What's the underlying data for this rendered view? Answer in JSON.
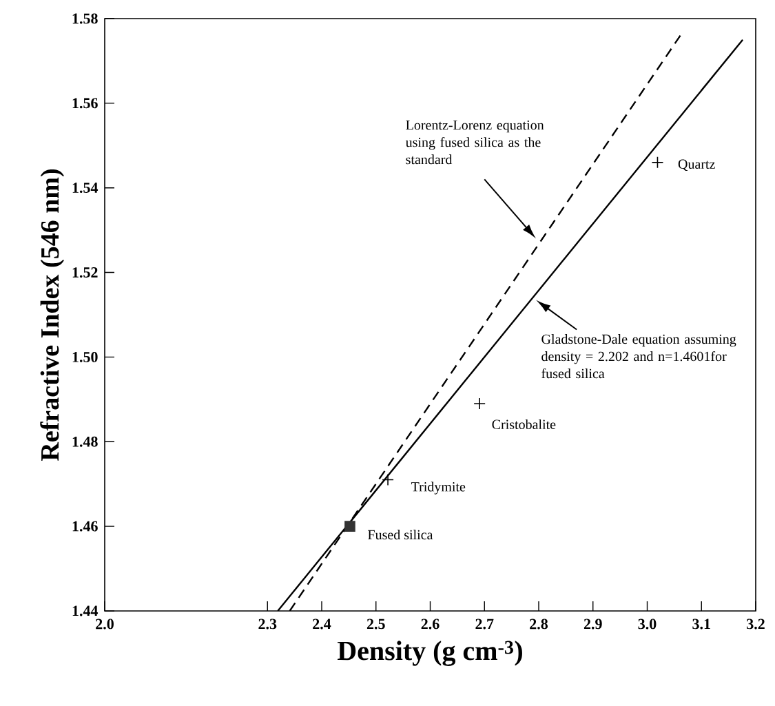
{
  "chart_data": {
    "type": "line",
    "xlabel": "Density (g cm$^{-3}$)",
    "ylabel": "Refractive Index (546 nm)",
    "xlim": [
      2.0,
      3.2
    ],
    "ylim": [
      1.44,
      1.58
    ],
    "xticks": [
      {
        "value": 2,
        "label": "2.0"
      },
      2.3,
      2.4,
      2.5,
      2.6,
      2.7,
      2.8,
      2.9,
      {
        "value": 3,
        "label": "3.0"
      },
      3.1,
      3.2
    ],
    "yticks": [
      1.44,
      1.46,
      1.48,
      {
        "value": 1.5,
        "label": "1.50"
      },
      1.52,
      1.54,
      1.56,
      1.58
    ],
    "grid": false,
    "series": [
      {
        "color": "#000000",
        "line_style": "solid",
        "marker": "none",
        "x": [
          2.319,
          3.176
        ],
        "values": [
          1.44,
          1.575
        ]
      },
      {
        "color": "#000000",
        "line_style": "dashed",
        "marker": "none",
        "x": [
          2.341,
          3.061
        ],
        "values": [
          1.44,
          1.576
        ]
      },
      {
        "type": "scatter",
        "color": "#333333",
        "marker": "square",
        "x": [
          2.452
        ],
        "values": [
          1.46
        ]
      },
      {
        "type": "scatter",
        "color": "#000000",
        "marker": "cross",
        "x": [
          2.522,
          2.691,
          3.019
        ],
        "values": [
          1.471,
          1.489,
          1.546
        ]
      }
    ],
    "annotations": [
      {
        "text": "Fused silica",
        "x": 2.452,
        "y": 1.46
      },
      {
        "text": "Tridymite",
        "x": 2.522,
        "y": 1.471
      },
      {
        "text": "Cristobalite",
        "x": 2.691,
        "y": 1.489
      },
      {
        "text": "Quartz",
        "x": 3.019,
        "y": 1.546
      },
      "Lorentz-Lorenz equation using fused silica as the standard",
      "Gladstone-Dale equation assuming density = 2.202 and n=1.4601for fused silica"
    ]
  }
}
